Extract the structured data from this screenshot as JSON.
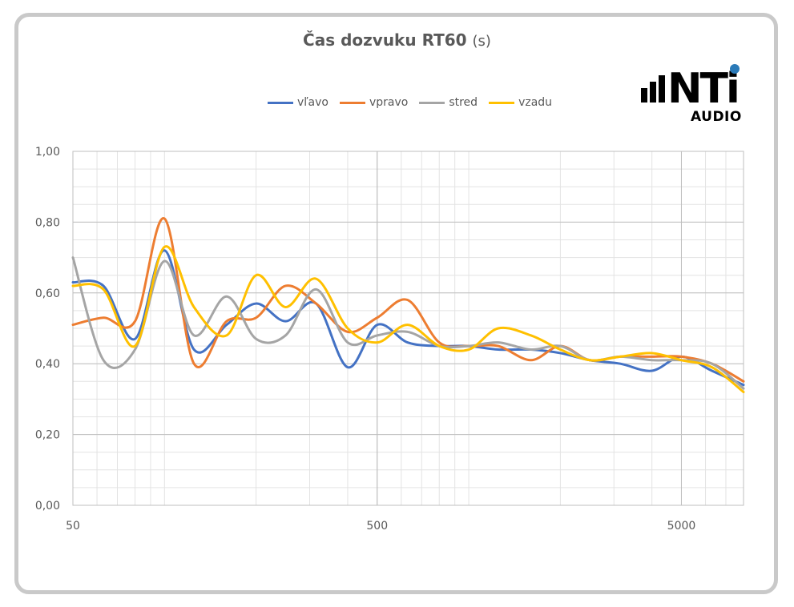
{
  "title_main": "Čas dozvuku RT60",
  "title_unit": "(s)",
  "logo": {
    "brand_text": "NTi",
    "sub_text": "AUDIO",
    "dot_color": "#2a7ab8"
  },
  "chart_data": {
    "type": "line",
    "title": "Čas dozvuku RT60 (s)",
    "xscale": "log",
    "xlim": [
      50,
      8000
    ],
    "ylim": [
      0,
      1
    ],
    "grid": true,
    "legend_position": "top",
    "y_ticks": [
      "0,00",
      "0,20",
      "0,40",
      "0,60",
      "0,80",
      "1,00"
    ],
    "y_tick_values": [
      0,
      0.2,
      0.4,
      0.6,
      0.8,
      1.0
    ],
    "x_ticks": [
      "50",
      "500",
      "5000"
    ],
    "x_tick_values": [
      50,
      500,
      5000
    ],
    "x": [
      50,
      63,
      80,
      100,
      125,
      160,
      200,
      250,
      315,
      400,
      500,
      630,
      800,
      1000,
      1250,
      1600,
      2000,
      2500,
      3150,
      4000,
      5000,
      6300,
      8000
    ],
    "series": [
      {
        "name": "vľavo",
        "color": "#4472c4",
        "values": [
          0.63,
          0.62,
          0.47,
          0.72,
          0.44,
          0.51,
          0.57,
          0.52,
          0.57,
          0.39,
          0.51,
          0.46,
          0.45,
          0.45,
          0.44,
          0.44,
          0.43,
          0.41,
          0.4,
          0.38,
          0.42,
          0.38,
          0.34
        ]
      },
      {
        "name": "vpravo",
        "color": "#ed7d31",
        "values": [
          0.51,
          0.53,
          0.52,
          0.81,
          0.4,
          0.52,
          0.53,
          0.62,
          0.57,
          0.49,
          0.53,
          0.58,
          0.46,
          0.45,
          0.45,
          0.41,
          0.45,
          0.41,
          0.42,
          0.42,
          0.42,
          0.4,
          0.35
        ]
      },
      {
        "name": "stred",
        "color": "#a5a5a5",
        "values": [
          0.7,
          0.41,
          0.44,
          0.69,
          0.48,
          0.59,
          0.47,
          0.48,
          0.61,
          0.46,
          0.48,
          0.49,
          0.45,
          0.45,
          0.46,
          0.44,
          0.45,
          0.41,
          0.42,
          0.41,
          0.41,
          0.4,
          0.33
        ]
      },
      {
        "name": "vzadu",
        "color": "#ffc000",
        "values": [
          0.62,
          0.61,
          0.45,
          0.73,
          0.56,
          0.48,
          0.65,
          0.56,
          0.64,
          0.5,
          0.46,
          0.51,
          0.45,
          0.44,
          0.5,
          0.48,
          0.44,
          0.41,
          0.42,
          0.43,
          0.41,
          0.39,
          0.32
        ]
      }
    ]
  }
}
